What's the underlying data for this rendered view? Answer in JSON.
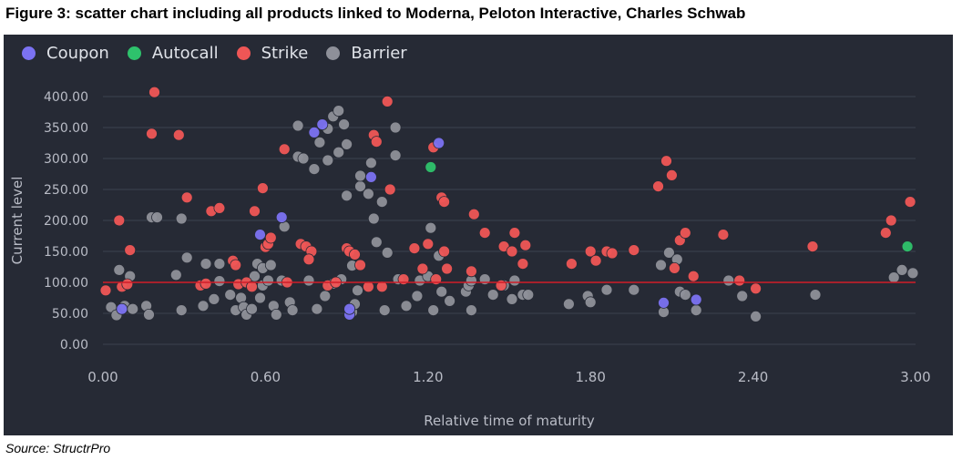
{
  "figure_title": "Figure 3: scatter chart including all products linked to Moderna, Peloton Interactive, Charles Schwab",
  "source": "Source: StructrPro",
  "colors": {
    "panel_bg": "#262a35",
    "grid": "#3c4150",
    "axis_text": "#b9bcc6",
    "ref_line": "#d01c28"
  },
  "chart_data": {
    "type": "scatter",
    "xlabel": "Relative time of maturity",
    "ylabel": "Current level",
    "xlim": [
      0,
      3
    ],
    "ylim": [
      0,
      400
    ],
    "x_ticks": [
      "0.00",
      "0.60",
      "1.20",
      "1.80",
      "2.40",
      "3.00"
    ],
    "x_tick_values": [
      0,
      0.6,
      1.2,
      1.8,
      2.4,
      3.0
    ],
    "y_ticks": [
      "0.00",
      "50.00",
      "100.00",
      "150.00",
      "200.00",
      "250.00",
      "300.00",
      "350.00",
      "400.00"
    ],
    "y_tick_values": [
      0,
      50,
      100,
      150,
      200,
      250,
      300,
      350,
      400
    ],
    "grid": "horizontal",
    "legend_position": "top-left",
    "reference_line": {
      "y": 100,
      "color": "#d01c28"
    },
    "series": [
      {
        "name": "Coupon",
        "color": "#7b72f2",
        "points": [
          [
            0.07,
            57
          ],
          [
            0.58,
            177
          ],
          [
            0.66,
            205
          ],
          [
            0.78,
            342
          ],
          [
            0.81,
            355
          ],
          [
            0.91,
            48
          ],
          [
            0.91,
            57
          ],
          [
            0.99,
            270
          ],
          [
            1.24,
            325
          ],
          [
            2.07,
            67
          ],
          [
            2.19,
            72
          ]
        ]
      },
      {
        "name": "Autocall",
        "color": "#2ec26c",
        "points": [
          [
            1.21,
            286
          ],
          [
            2.97,
            158
          ]
        ]
      },
      {
        "name": "Strike",
        "color": "#ef5656",
        "points": [
          [
            0.01,
            87
          ],
          [
            0.06,
            200
          ],
          [
            0.07,
            93
          ],
          [
            0.09,
            97
          ],
          [
            0.1,
            152
          ],
          [
            0.18,
            340
          ],
          [
            0.19,
            407
          ],
          [
            0.28,
            338
          ],
          [
            0.31,
            237
          ],
          [
            0.36,
            95
          ],
          [
            0.38,
            98
          ],
          [
            0.4,
            215
          ],
          [
            0.43,
            220
          ],
          [
            0.48,
            135
          ],
          [
            0.49,
            128
          ],
          [
            0.5,
            97
          ],
          [
            0.53,
            100
          ],
          [
            0.55,
            93
          ],
          [
            0.56,
            215
          ],
          [
            0.59,
            252
          ],
          [
            0.6,
            157
          ],
          [
            0.61,
            162
          ],
          [
            0.62,
            172
          ],
          [
            0.68,
            100
          ],
          [
            0.67,
            315
          ],
          [
            0.73,
            162
          ],
          [
            0.75,
            158
          ],
          [
            0.77,
            150
          ],
          [
            0.76,
            137
          ],
          [
            0.83,
            95
          ],
          [
            0.86,
            100
          ],
          [
            0.9,
            155
          ],
          [
            0.91,
            150
          ],
          [
            0.93,
            145
          ],
          [
            0.95,
            128
          ],
          [
            0.98,
            93
          ],
          [
            1.0,
            338
          ],
          [
            1.01,
            327
          ],
          [
            1.03,
            93
          ],
          [
            1.05,
            392
          ],
          [
            1.06,
            250
          ],
          [
            1.11,
            105
          ],
          [
            1.15,
            155
          ],
          [
            1.18,
            122
          ],
          [
            1.2,
            162
          ],
          [
            1.22,
            318
          ],
          [
            1.23,
            105
          ],
          [
            1.25,
            237
          ],
          [
            1.26,
            230
          ],
          [
            1.27,
            122
          ],
          [
            1.26,
            150
          ],
          [
            1.36,
            118
          ],
          [
            1.37,
            210
          ],
          [
            1.41,
            180
          ],
          [
            1.47,
            95
          ],
          [
            1.48,
            158
          ],
          [
            1.51,
            150
          ],
          [
            1.52,
            180
          ],
          [
            1.56,
            160
          ],
          [
            1.55,
            130
          ],
          [
            1.73,
            130
          ],
          [
            1.8,
            150
          ],
          [
            1.82,
            135
          ],
          [
            1.86,
            150
          ],
          [
            1.88,
            147
          ],
          [
            1.96,
            152
          ],
          [
            2.05,
            255
          ],
          [
            2.08,
            296
          ],
          [
            2.1,
            273
          ],
          [
            2.11,
            123
          ],
          [
            2.13,
            168
          ],
          [
            2.15,
            180
          ],
          [
            2.18,
            110
          ],
          [
            2.29,
            177
          ],
          [
            2.35,
            103
          ],
          [
            2.41,
            90
          ],
          [
            2.62,
            158
          ],
          [
            2.89,
            180
          ],
          [
            2.91,
            200
          ],
          [
            2.98,
            230
          ]
        ]
      },
      {
        "name": "Barrier",
        "color": "#8e9099",
        "points": [
          [
            0.03,
            60
          ],
          [
            0.06,
            120
          ],
          [
            0.05,
            47
          ],
          [
            0.08,
            62
          ],
          [
            0.1,
            110
          ],
          [
            0.11,
            57
          ],
          [
            0.16,
            62
          ],
          [
            0.17,
            48
          ],
          [
            0.18,
            205
          ],
          [
            0.2,
            205
          ],
          [
            0.27,
            112
          ],
          [
            0.29,
            55
          ],
          [
            0.29,
            203
          ],
          [
            0.31,
            140
          ],
          [
            0.37,
            62
          ],
          [
            0.38,
            130
          ],
          [
            0.41,
            73
          ],
          [
            0.43,
            102
          ],
          [
            0.43,
            130
          ],
          [
            0.47,
            80
          ],
          [
            0.49,
            55
          ],
          [
            0.51,
            75
          ],
          [
            0.52,
            60
          ],
          [
            0.53,
            48
          ],
          [
            0.55,
            57
          ],
          [
            0.57,
            130
          ],
          [
            0.56,
            110
          ],
          [
            0.58,
            75
          ],
          [
            0.59,
            95
          ],
          [
            0.59,
            123
          ],
          [
            0.61,
            103
          ],
          [
            0.62,
            128
          ],
          [
            0.63,
            62
          ],
          [
            0.64,
            48
          ],
          [
            0.66,
            103
          ],
          [
            0.67,
            190
          ],
          [
            0.69,
            68
          ],
          [
            0.7,
            55
          ],
          [
            0.72,
            353
          ],
          [
            0.72,
            303
          ],
          [
            0.74,
            300
          ],
          [
            0.76,
            103
          ],
          [
            0.78,
            283
          ],
          [
            0.79,
            57
          ],
          [
            0.8,
            326
          ],
          [
            0.83,
            348
          ],
          [
            0.83,
            297
          ],
          [
            0.82,
            78
          ],
          [
            0.85,
            98
          ],
          [
            0.85,
            368
          ],
          [
            0.87,
            377
          ],
          [
            0.87,
            310
          ],
          [
            0.88,
            105
          ],
          [
            0.89,
            355
          ],
          [
            0.9,
            323
          ],
          [
            0.9,
            240
          ],
          [
            0.92,
            52
          ],
          [
            0.92,
            127
          ],
          [
            0.93,
            65
          ],
          [
            0.94,
            87
          ],
          [
            0.95,
            255
          ],
          [
            0.95,
            272
          ],
          [
            0.98,
            243
          ],
          [
            1.0,
            203
          ],
          [
            0.99,
            293
          ],
          [
            1.01,
            165
          ],
          [
            1.03,
            230
          ],
          [
            1.04,
            55
          ],
          [
            1.05,
            148
          ],
          [
            1.08,
            350
          ],
          [
            1.08,
            305
          ],
          [
            1.09,
            105
          ],
          [
            1.12,
            62
          ],
          [
            1.16,
            78
          ],
          [
            1.17,
            103
          ],
          [
            1.2,
            110
          ],
          [
            1.21,
            188
          ],
          [
            1.22,
            55
          ],
          [
            1.24,
            143
          ],
          [
            1.25,
            85
          ],
          [
            1.28,
            70
          ],
          [
            1.34,
            85
          ],
          [
            1.35,
            95
          ],
          [
            1.36,
            103
          ],
          [
            1.36,
            55
          ],
          [
            1.41,
            105
          ],
          [
            1.44,
            80
          ],
          [
            1.48,
            95
          ],
          [
            1.51,
            73
          ],
          [
            1.52,
            103
          ],
          [
            1.55,
            80
          ],
          [
            1.57,
            80
          ],
          [
            1.72,
            65
          ],
          [
            1.79,
            78
          ],
          [
            1.8,
            68
          ],
          [
            1.86,
            88
          ],
          [
            1.96,
            88
          ],
          [
            2.06,
            128
          ],
          [
            2.07,
            52
          ],
          [
            2.09,
            148
          ],
          [
            2.12,
            137
          ],
          [
            2.13,
            85
          ],
          [
            2.15,
            80
          ],
          [
            2.19,
            55
          ],
          [
            2.31,
            103
          ],
          [
            2.36,
            78
          ],
          [
            2.41,
            45
          ],
          [
            2.63,
            80
          ],
          [
            2.92,
            108
          ],
          [
            2.95,
            120
          ],
          [
            2.99,
            115
          ]
        ]
      }
    ]
  }
}
